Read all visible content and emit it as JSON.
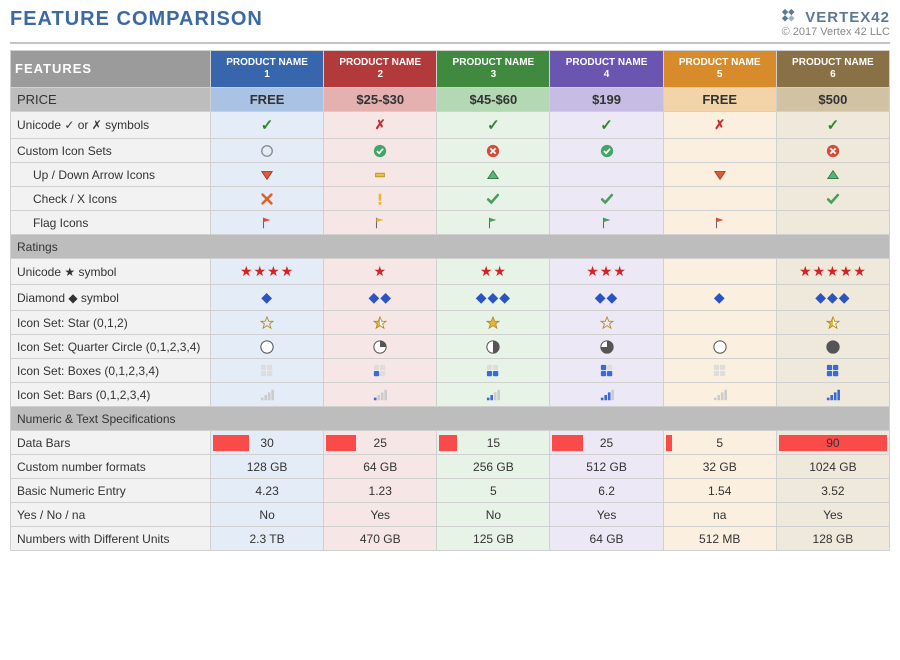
{
  "title": "FEATURE COMPARISON",
  "brand": {
    "name": "VERTEX42",
    "copyright": "© 2017 Vertex 42 LLC"
  },
  "features_label": "FEATURES",
  "colors": {
    "products": [
      {
        "header": "#3766ad",
        "price": "#aac2e4",
        "body": "#e4ecf7"
      },
      {
        "header": "#b33a3a",
        "price": "#e4b0b0",
        "body": "#f6e6e6"
      },
      {
        "header": "#3f8a3f",
        "price": "#b4d7b4",
        "body": "#e8f3e8"
      },
      {
        "header": "#6a55b0",
        "price": "#c6bce4",
        "body": "#ece8f5"
      },
      {
        "header": "#d78b2a",
        "price": "#f2d4a8",
        "body": "#fbf0df"
      },
      {
        "header": "#8a7045",
        "price": "#d2c2a4",
        "body": "#efe9dc"
      }
    ],
    "databar": "#fa4a4a",
    "check": "#2a8a2a",
    "cross": "#c62f2f",
    "star_red": "#d62222",
    "diamond_blue": "#2a54c4"
  },
  "products": [
    {
      "name": "PRODUCT NAME 1",
      "price": "FREE"
    },
    {
      "name": "PRODUCT NAME 2",
      "price": "$25-$30"
    },
    {
      "name": "PRODUCT NAME 3",
      "price": "$45-$60"
    },
    {
      "name": "PRODUCT NAME 4",
      "price": "$199"
    },
    {
      "name": "PRODUCT NAME 5",
      "price": "FREE"
    },
    {
      "name": "PRODUCT NAME 6",
      "price": "$500"
    }
  ],
  "price_label": "PRICE",
  "rows": [
    {
      "label": "Unicode ✓ or ✗ symbols",
      "cells": [
        {
          "t": "check"
        },
        {
          "t": "cross"
        },
        {
          "t": "check"
        },
        {
          "t": "check"
        },
        {
          "t": "cross"
        },
        {
          "t": "check"
        }
      ]
    },
    {
      "label": "Custom Icon Sets",
      "cells": [
        {
          "t": "circle-empty"
        },
        {
          "t": "circle-check-green"
        },
        {
          "t": "circle-x-red"
        },
        {
          "t": "circle-check-green"
        },
        {
          "t": "blank"
        },
        {
          "t": "circle-x-red"
        }
      ]
    },
    {
      "label": "Up / Down Arrow Icons",
      "indent": true,
      "cells": [
        {
          "t": "tri-down-red"
        },
        {
          "t": "dash-yellow"
        },
        {
          "t": "tri-up-green"
        },
        {
          "t": "blank"
        },
        {
          "t": "tri-down-red"
        },
        {
          "t": "tri-up-green"
        }
      ]
    },
    {
      "label": "Check / X Icons",
      "indent": true,
      "cells": [
        {
          "t": "x-orange"
        },
        {
          "t": "excl-yellow"
        },
        {
          "t": "check-green"
        },
        {
          "t": "check-green"
        },
        {
          "t": "blank"
        },
        {
          "t": "check-green"
        }
      ]
    },
    {
      "label": "Flag Icons",
      "indent": true,
      "cells": [
        {
          "t": "flag-red"
        },
        {
          "t": "flag-yellow"
        },
        {
          "t": "flag-green"
        },
        {
          "t": "flag-green"
        },
        {
          "t": "flag-red"
        },
        {
          "t": "blank"
        }
      ]
    },
    {
      "section": "Ratings"
    },
    {
      "label": "Unicode ★ symbol",
      "cells": [
        {
          "t": "stars",
          "n": 4
        },
        {
          "t": "stars",
          "n": 1
        },
        {
          "t": "stars",
          "n": 2
        },
        {
          "t": "stars",
          "n": 3
        },
        {
          "t": "blank"
        },
        {
          "t": "stars",
          "n": 5
        }
      ]
    },
    {
      "label": "Diamond ◆ symbol",
      "cells": [
        {
          "t": "diamonds",
          "n": 1
        },
        {
          "t": "diamonds",
          "n": 2
        },
        {
          "t": "diamonds",
          "n": 3
        },
        {
          "t": "diamonds",
          "n": 2
        },
        {
          "t": "diamonds",
          "n": 1
        },
        {
          "t": "diamonds",
          "n": 3
        }
      ]
    },
    {
      "label": "Icon Set: Star (0,1,2)",
      "cells": [
        {
          "t": "star-outline"
        },
        {
          "t": "star-half"
        },
        {
          "t": "star-full"
        },
        {
          "t": "star-outline"
        },
        {
          "t": "blank"
        },
        {
          "t": "star-half"
        }
      ]
    },
    {
      "label": "Icon Set: Quarter Circle (0,1,2,3,4)",
      "cells": [
        {
          "t": "pie",
          "n": 0
        },
        {
          "t": "pie",
          "n": 1
        },
        {
          "t": "pie",
          "n": 2
        },
        {
          "t": "pie",
          "n": 3
        },
        {
          "t": "pie",
          "n": 0
        },
        {
          "t": "pie",
          "n": 4
        }
      ]
    },
    {
      "label": "Icon Set: Boxes (0,1,2,3,4)",
      "cells": [
        {
          "t": "boxes",
          "n": 0
        },
        {
          "t": "boxes",
          "n": 1
        },
        {
          "t": "boxes",
          "n": 2
        },
        {
          "t": "boxes",
          "n": 3
        },
        {
          "t": "boxes",
          "n": 0
        },
        {
          "t": "boxes",
          "n": 4
        }
      ]
    },
    {
      "label": "Icon Set: Bars (0,1,2,3,4)",
      "cells": [
        {
          "t": "bars",
          "n": 0
        },
        {
          "t": "bars",
          "n": 1
        },
        {
          "t": "bars",
          "n": 2
        },
        {
          "t": "bars",
          "n": 3
        },
        {
          "t": "bars",
          "n": 0
        },
        {
          "t": "bars",
          "n": 4
        }
      ]
    },
    {
      "section": "Numeric & Text Specifications"
    },
    {
      "label": "Data Bars",
      "bodybg": true,
      "cells": [
        {
          "t": "databar",
          "v": 30
        },
        {
          "t": "databar",
          "v": 25
        },
        {
          "t": "databar",
          "v": 15
        },
        {
          "t": "databar",
          "v": 25
        },
        {
          "t": "databar",
          "v": 5
        },
        {
          "t": "databar",
          "v": 90
        }
      ]
    },
    {
      "label": "Custom number formats",
      "bodybg": true,
      "cells": [
        {
          "t": "text",
          "v": "128 GB"
        },
        {
          "t": "text",
          "v": "64 GB"
        },
        {
          "t": "text",
          "v": "256 GB"
        },
        {
          "t": "text",
          "v": "512 GB"
        },
        {
          "t": "text",
          "v": "32 GB"
        },
        {
          "t": "text",
          "v": "1024 GB"
        }
      ]
    },
    {
      "label": "Basic Numeric Entry",
      "bodybg": true,
      "cells": [
        {
          "t": "text",
          "v": "4.23"
        },
        {
          "t": "text",
          "v": "1.23"
        },
        {
          "t": "text",
          "v": "5"
        },
        {
          "t": "text",
          "v": "6.2"
        },
        {
          "t": "text",
          "v": "1.54"
        },
        {
          "t": "text",
          "v": "3.52"
        }
      ]
    },
    {
      "label": "Yes / No / na",
      "bodybg": true,
      "cells": [
        {
          "t": "text",
          "v": "No"
        },
        {
          "t": "text",
          "v": "Yes"
        },
        {
          "t": "text",
          "v": "No"
        },
        {
          "t": "text",
          "v": "Yes"
        },
        {
          "t": "text",
          "v": "na"
        },
        {
          "t": "text",
          "v": "Yes"
        }
      ]
    },
    {
      "label": "Numbers with Different Units",
      "bodybg": true,
      "cells": [
        {
          "t": "text",
          "v": "2.3 TB"
        },
        {
          "t": "text",
          "v": "470 GB"
        },
        {
          "t": "text",
          "v": "125 GB"
        },
        {
          "t": "text",
          "v": "64 GB"
        },
        {
          "t": "text",
          "v": "512 MB"
        },
        {
          "t": "text",
          "v": "128 GB"
        }
      ]
    }
  ],
  "databar_max": 90
}
